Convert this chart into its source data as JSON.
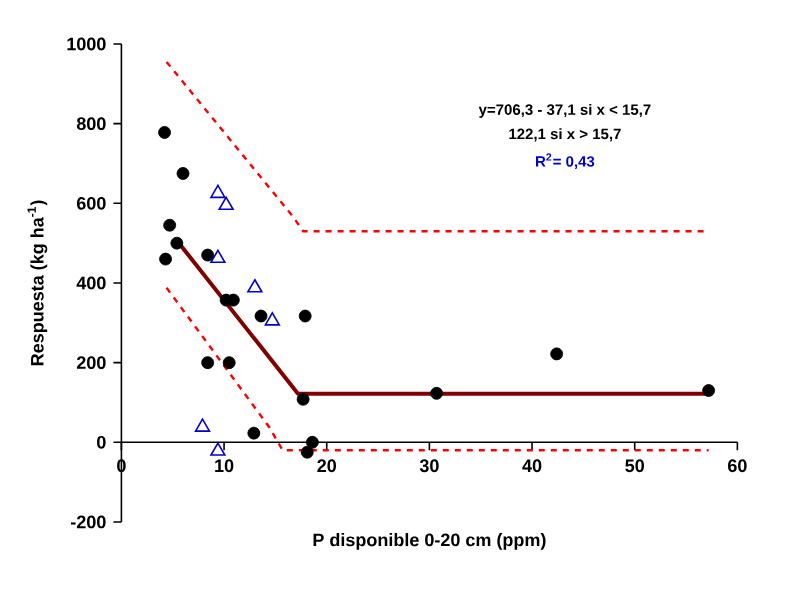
{
  "chart_data": {
    "type": "scatter",
    "xlabel": "P disponible 0-20 cm (ppm)",
    "ylabel": "Respuesta (kg ha$^{-1}$)",
    "annotations": [
      "y=706,3 - 37,1 si  x < 15,7",
      "122,1 si x > 15,7",
      "R$^{2}$= 0,43"
    ],
    "xlim": [
      0,
      60
    ],
    "ylim": [
      -200,
      1000
    ],
    "xticks": [
      0,
      10,
      20,
      30,
      40,
      50,
      60
    ],
    "yticks": [
      -200,
      0,
      200,
      400,
      600,
      800,
      1000
    ],
    "series": [
      {
        "type": "scatter",
        "color": "#000000",
        "marker": "circle",
        "x": [
          4.2,
          6.0,
          4.7,
          5.4,
          4.3,
          8.4,
          10.2,
          10.9,
          13.6,
          17.9,
          8.4,
          10.5,
          17.7,
          12.9,
          18.1,
          18.6,
          30.7,
          42.4,
          57.2
        ],
        "values": [
          778,
          675,
          545,
          500,
          460,
          470,
          357,
          357,
          317,
          317,
          200,
          200,
          108,
          23,
          -25,
          0,
          123,
          222,
          130
        ]
      },
      {
        "type": "scatter",
        "color": "#0000cc",
        "marker": "triangle",
        "x": [
          9.4,
          10.2,
          9.4,
          13.0,
          14.7,
          7.9,
          9.4
        ],
        "values": [
          625,
          595,
          462,
          388,
          305,
          38,
          -22
        ]
      },
      {
        "type": "line",
        "color": "#800000",
        "line_style": "solid",
        "x": [
          5.3,
          17.2,
          57.2
        ],
        "values": [
          510,
          122,
          122
        ]
      },
      {
        "type": "line",
        "color": "#ff0000",
        "line_style": "dashed",
        "x": [
          4.4,
          16.7,
          17.7,
          57.2
        ],
        "values": [
          955,
          567,
          530,
          530
        ]
      },
      {
        "type": "line",
        "color": "#ff0000",
        "line_style": "dashed",
        "x": [
          4.4,
          14.4,
          15.7,
          57.2
        ],
        "values": [
          388,
          38,
          -20,
          -20
        ]
      }
    ]
  }
}
